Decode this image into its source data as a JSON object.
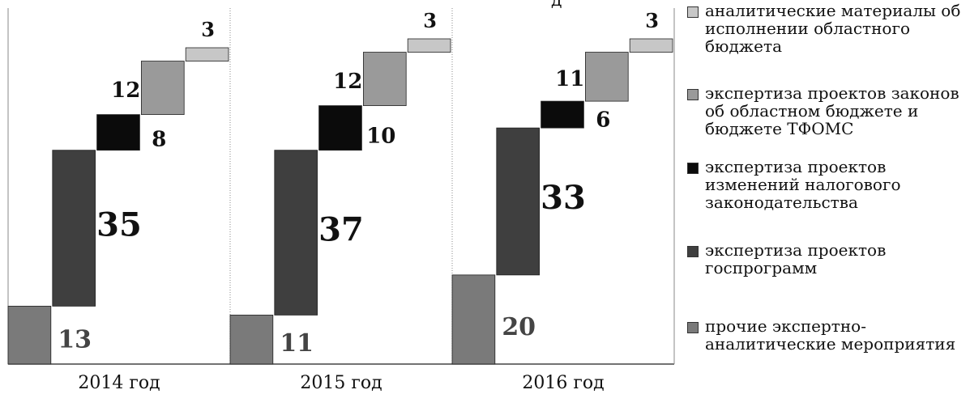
{
  "chart_data": {
    "type": "bar",
    "subtype": "waterfall",
    "title_fragment": "д",
    "categories": [
      "2014 год",
      "2015 год",
      "2016 год"
    ],
    "series": [
      {
        "name": "прочие экспертно-аналитические мероприятия",
        "values": [
          13,
          11,
          20
        ],
        "color": "#7a7a7a"
      },
      {
        "name": "экспертиза проектов госпрограмм",
        "values": [
          35,
          37,
          33
        ],
        "color": "#3f3f3f"
      },
      {
        "name": "экспертиза проектов изменений налогового законодательства",
        "values": [
          8,
          10,
          6
        ],
        "color": "#0b0b0b"
      },
      {
        "name": "экспертиза проектов законов об областном бюджете и бюджете ТФОМС",
        "values": [
          12,
          12,
          11
        ],
        "color": "#9a9a9a"
      },
      {
        "name": "аналитические материалы об исполнении областного бюджета",
        "values": [
          3,
          3,
          3
        ],
        "color": "#c7c7c7"
      }
    ]
  },
  "legend": [
    {
      "label": "аналитические материалы об исполнении областного бюджета",
      "color": "#c7c7c7"
    },
    {
      "label": "экспертиза проектов законов об областном бюджете и бюджете ТФОМС",
      "color": "#9a9a9a"
    },
    {
      "label": "экспертиза проектов изменений налогового законодательства",
      "color": "#0b0b0b"
    },
    {
      "label": "экспертиза проектов госпрограмм",
      "color": "#3f3f3f"
    },
    {
      "label": "прочие экспертно-аналитические мероприятия",
      "color": "#7a7a7a"
    }
  ]
}
